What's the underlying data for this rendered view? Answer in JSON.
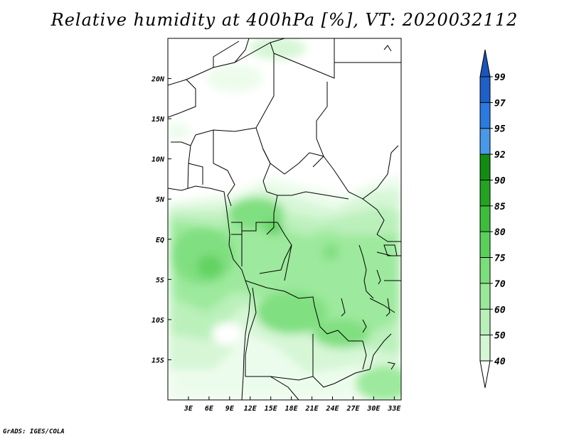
{
  "title": "Relative humidity at 400hPa [%], VT: 2020032112",
  "credit": "GrADS: IGES/COLA",
  "map": {
    "lon_range": [
      0,
      34
    ],
    "lat_range": [
      -20,
      25
    ],
    "lat_ticks": [
      {
        "value": 20,
        "label": "20N"
      },
      {
        "value": 15,
        "label": "15N"
      },
      {
        "value": 10,
        "label": "10N"
      },
      {
        "value": 5,
        "label": "5N"
      },
      {
        "value": 0,
        "label": "EQ"
      },
      {
        "value": -5,
        "label": "5S"
      },
      {
        "value": -10,
        "label": "10S"
      },
      {
        "value": -15,
        "label": "15S"
      }
    ],
    "lon_ticks": [
      {
        "value": 3,
        "label": "3E"
      },
      {
        "value": 6,
        "label": "6E"
      },
      {
        "value": 9,
        "label": "9E"
      },
      {
        "value": 12,
        "label": "12E"
      },
      {
        "value": 15,
        "label": "15E"
      },
      {
        "value": 18,
        "label": "18E"
      },
      {
        "value": 21,
        "label": "21E"
      },
      {
        "value": 24,
        "label": "24E"
      },
      {
        "value": 27,
        "label": "27E"
      },
      {
        "value": 30,
        "label": "30E"
      },
      {
        "value": 33,
        "label": "33E"
      }
    ]
  },
  "colorbar": {
    "levels": [
      {
        "label": "99",
        "color": "#1e5fc8"
      },
      {
        "label": "97",
        "color": "#2b7ae0"
      },
      {
        "label": "95",
        "color": "#4a98e8"
      },
      {
        "label": "92",
        "color": "#128c12"
      },
      {
        "label": "90",
        "color": "#22a422"
      },
      {
        "label": "85",
        "color": "#3cbe3c"
      },
      {
        "label": "80",
        "color": "#5ad05a"
      },
      {
        "label": "75",
        "color": "#7ade7a"
      },
      {
        "label": "70",
        "color": "#98e898"
      },
      {
        "label": "60",
        "color": "#b8f0b8"
      },
      {
        "label": "50",
        "color": "#d4f6d4"
      },
      {
        "label": "40",
        "color": "#ecfcec"
      }
    ],
    "top_arrow_color": "#1a56b8",
    "bottom_arrow_color": "#ffffff"
  }
}
